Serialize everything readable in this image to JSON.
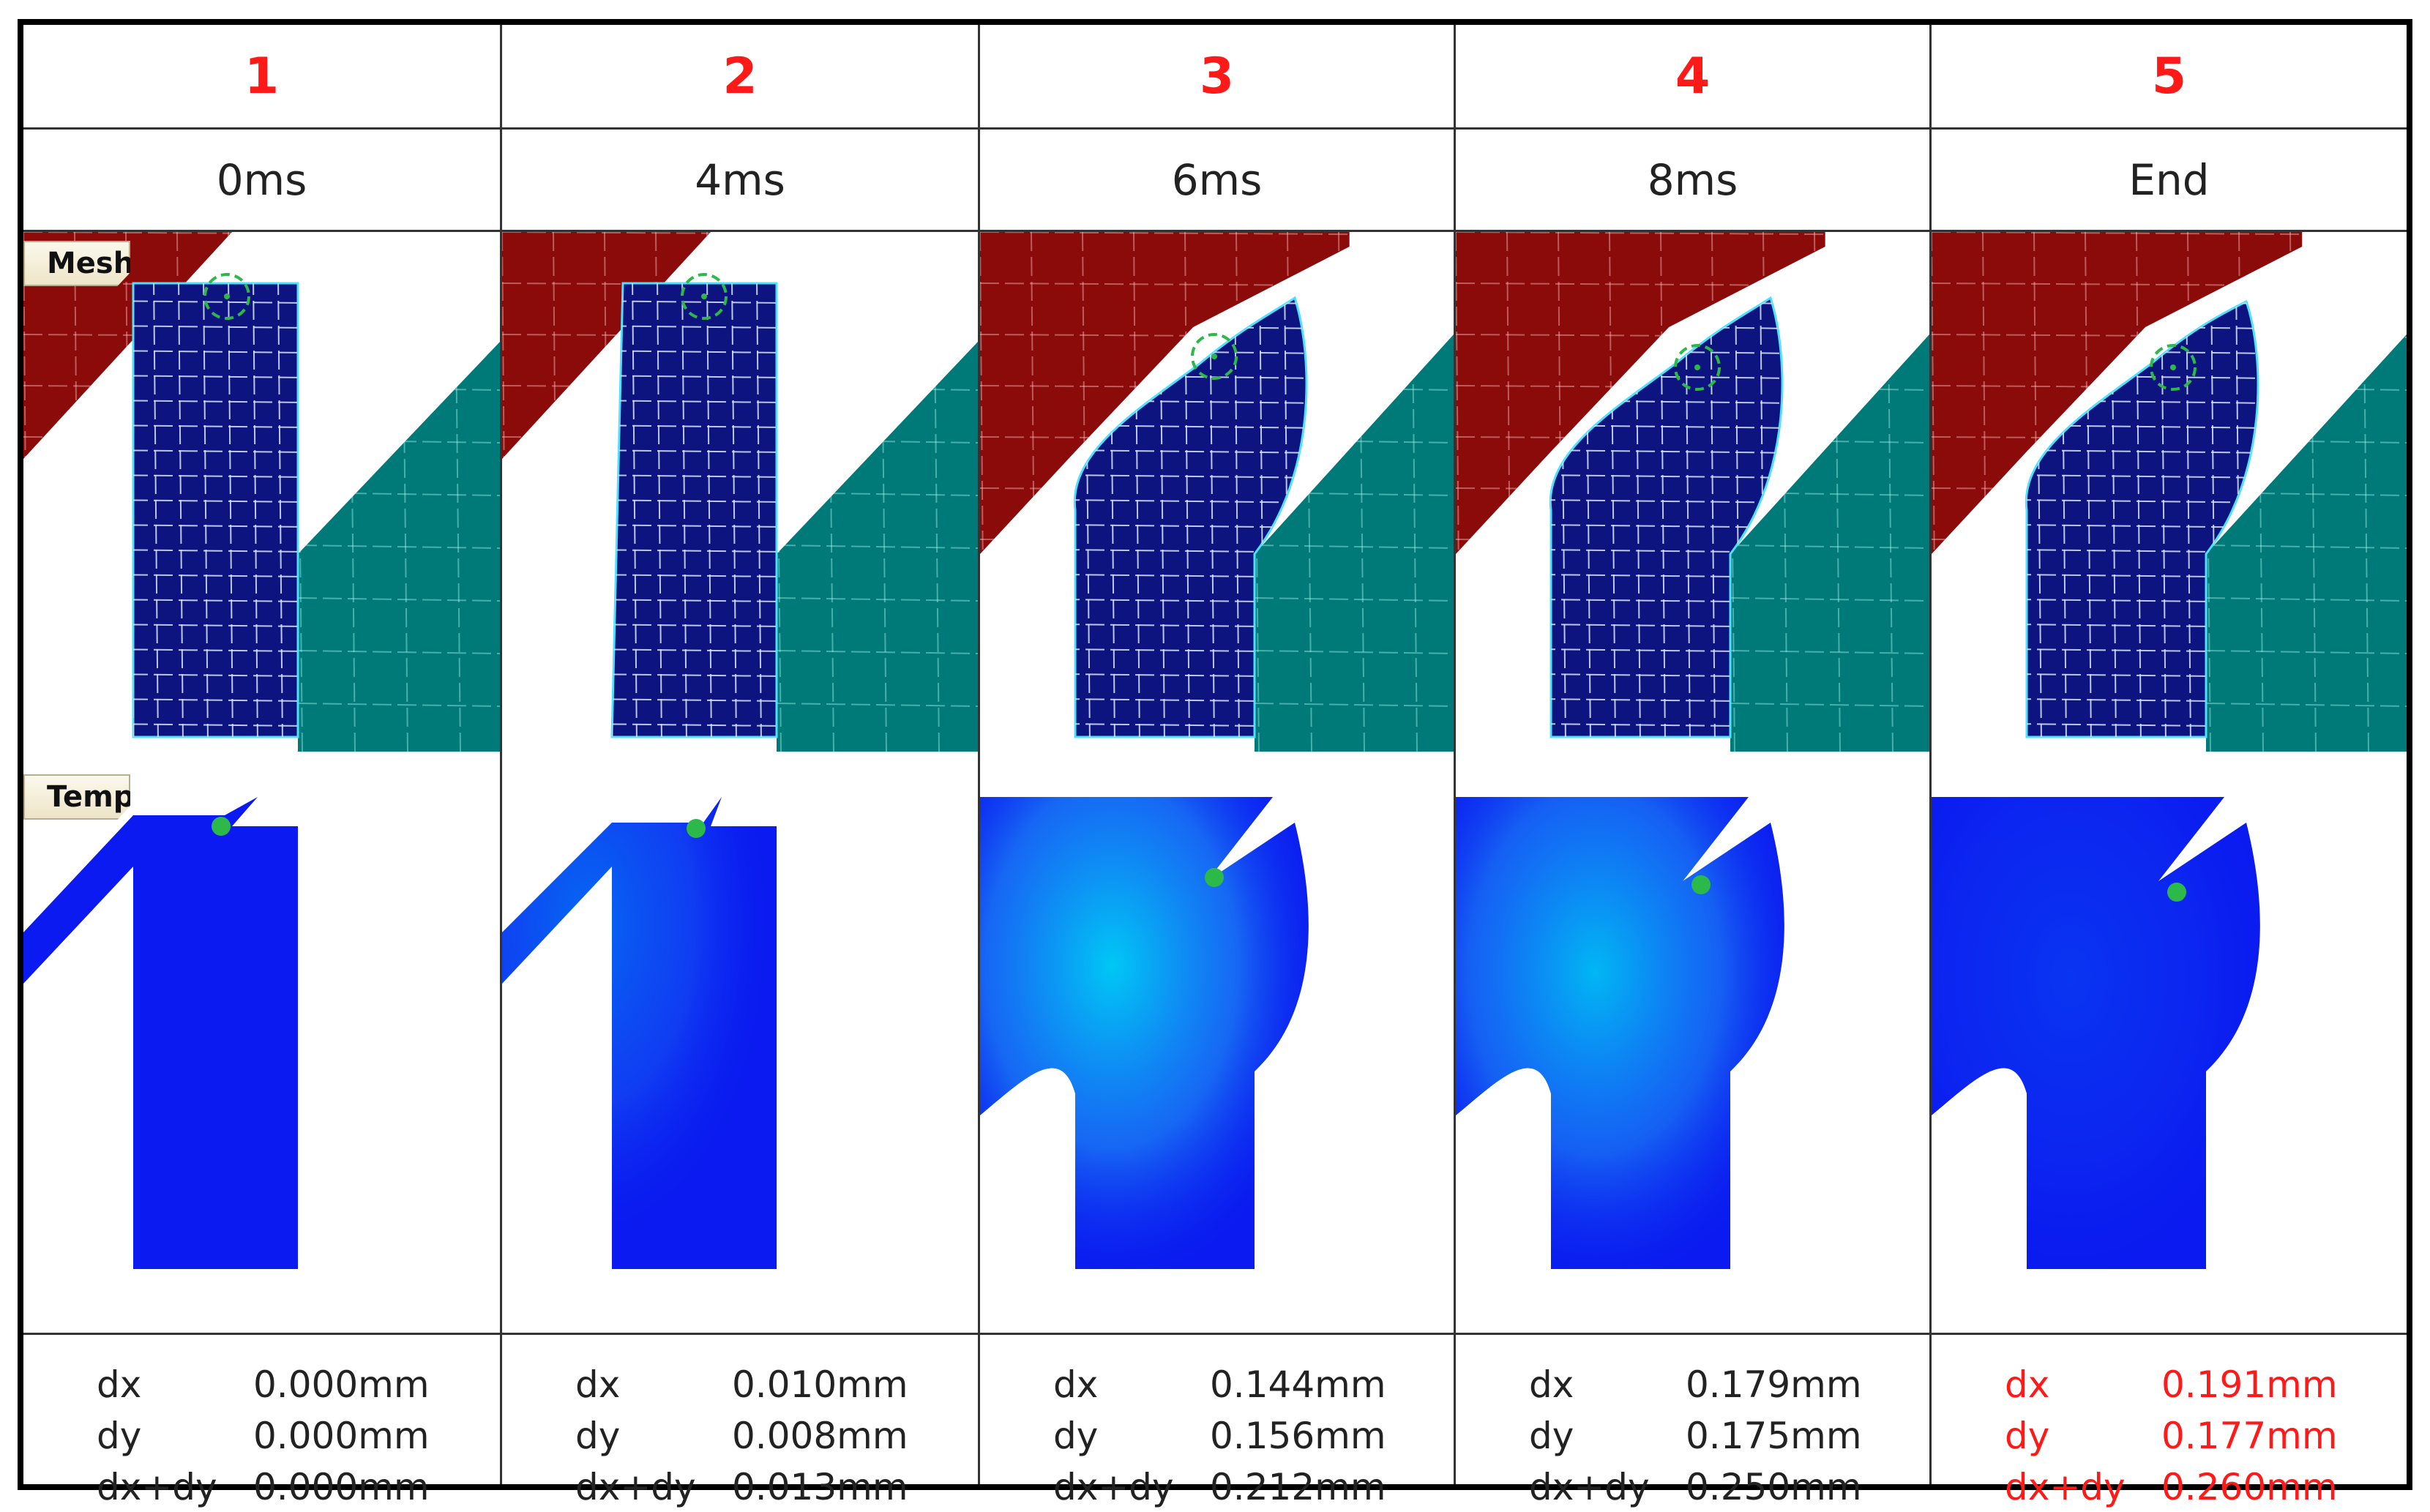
{
  "tags": {
    "mesh": "Mesh",
    "temp": "Temp"
  },
  "colors": {
    "step_number": "#ff1a1a",
    "highlight": "#ff1a1a",
    "tool_upper": "#8b0a0a",
    "tool_lower": "#007a78",
    "workpiece_mesh": "#0d1480",
    "temp_cool": "#0a1af0",
    "temp_warm": "#00c8f5",
    "marker": "#2db84a"
  },
  "steps": [
    {
      "number": "1",
      "time": "0ms",
      "dx": "0.000mm",
      "dy": "0.000mm",
      "dxdy": "0.000mm",
      "highlight": false
    },
    {
      "number": "2",
      "time": "4ms",
      "dx": "0.010mm",
      "dy": "0.008mm",
      "dxdy": "0.013mm",
      "highlight": false
    },
    {
      "number": "3",
      "time": "6ms",
      "dx": "0.144mm",
      "dy": "0.156mm",
      "dxdy": "0.212mm",
      "highlight": false
    },
    {
      "number": "4",
      "time": "8ms",
      "dx": "0.179mm",
      "dy": "0.175mm",
      "dxdy": "0.250mm",
      "highlight": false
    },
    {
      "number": "5",
      "time": "End",
      "dx": "0.191mm",
      "dy": "0.177mm",
      "dxdy": "0.260mm",
      "highlight": true
    }
  ],
  "readout_labels": {
    "dx": "dx",
    "dy": "dy",
    "dxdy": "dx+dy"
  }
}
